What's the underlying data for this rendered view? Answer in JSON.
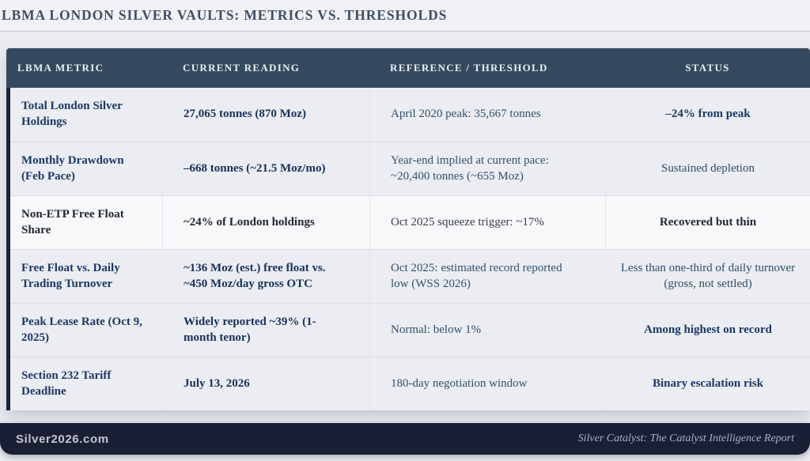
{
  "page": {
    "title": "LBMA LONDON SILVER VAULTS: METRICS VS. THRESHOLDS"
  },
  "table": {
    "columns": [
      "LBMA METRIC",
      "CURRENT READING",
      "REFERENCE / THRESHOLD",
      "STATUS"
    ],
    "rows": [
      {
        "metric": "Total London Silver Holdings",
        "current": "27,065 tonnes (870 Moz)",
        "reference": "April 2020 peak: 35,667 tonnes",
        "status": "–24% from peak"
      },
      {
        "metric": "Monthly Drawdown (Feb Pace)",
        "current": "–668 tonnes (~21.5 Moz/mo)",
        "reference": "Year-end implied at current pace: ~20,400 tonnes (~655 Moz)",
        "status": "Sustained depletion"
      },
      {
        "metric": "Non-ETP Free Float Share",
        "current": "~24% of London holdings",
        "reference": "Oct 2025 squeeze trigger: ~17%",
        "status": "Recovered but thin"
      },
      {
        "metric": "Free Float vs. Daily Trading Turnover",
        "current": "~136 Moz (est.) free float vs. ~450 Moz/day gross OTC",
        "reference": "Oct 2025: estimated record reported low (WSS 2026)",
        "status": "Less than one-third of daily turnover (gross, not settled)"
      },
      {
        "metric": "Peak Lease Rate (Oct 9, 2025)",
        "current": "Widely reported ~39% (1-month tenor)",
        "reference": "Normal: below 1%",
        "status": "Among highest on record"
      },
      {
        "metric": "Section 232 Tariff Deadline",
        "current": "July 13, 2026",
        "reference": "180-day negotiation window",
        "status": "Binary escalation risk"
      }
    ]
  },
  "footer": {
    "site": "Silver2026.com",
    "report": "Silver Catalyst: The Catalyst Intelligence Report"
  },
  "colors": {
    "header_bg": "#34495e",
    "accent_bar": "#16243c",
    "row_bg": "#ebedf2",
    "highlight_row_bg": "#f7f8fa",
    "navy_text": "#1b3866",
    "footer_bg": "#1a1f36",
    "page_bg": "#eaecf1"
  }
}
